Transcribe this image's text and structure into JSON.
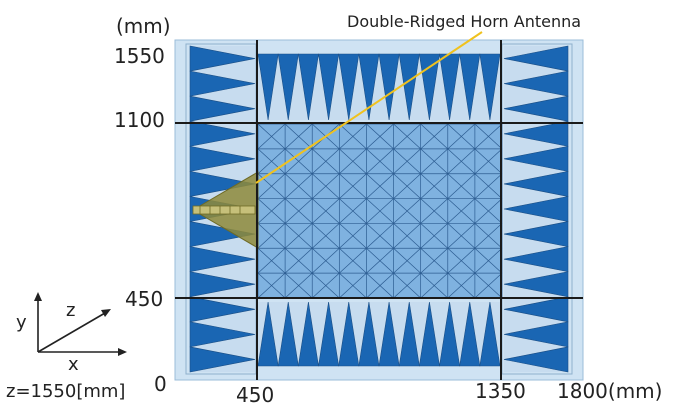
{
  "title": "Double-Ridged Horn Antenna",
  "unit_label": "(mm)",
  "y_ticks": {
    "top": "1550",
    "upper": "1100",
    "lower": "450",
    "zero": "0"
  },
  "x_ticks": {
    "left": "450",
    "right": "1350",
    "end": "1800(mm)"
  },
  "axes": {
    "x": "x",
    "y": "y",
    "z": "z"
  },
  "plane_note": "z=1550[mm]",
  "colors": {
    "room": "#cfe3f3",
    "absorber_dark": "#1a66b3",
    "absorber_light": "#c7dcef",
    "floor": "#7fb2e0",
    "grid": "#2c5c91",
    "antenna": "#8e8a3a",
    "leader": "#f0c21e",
    "frame": "#1a1a1a"
  }
}
